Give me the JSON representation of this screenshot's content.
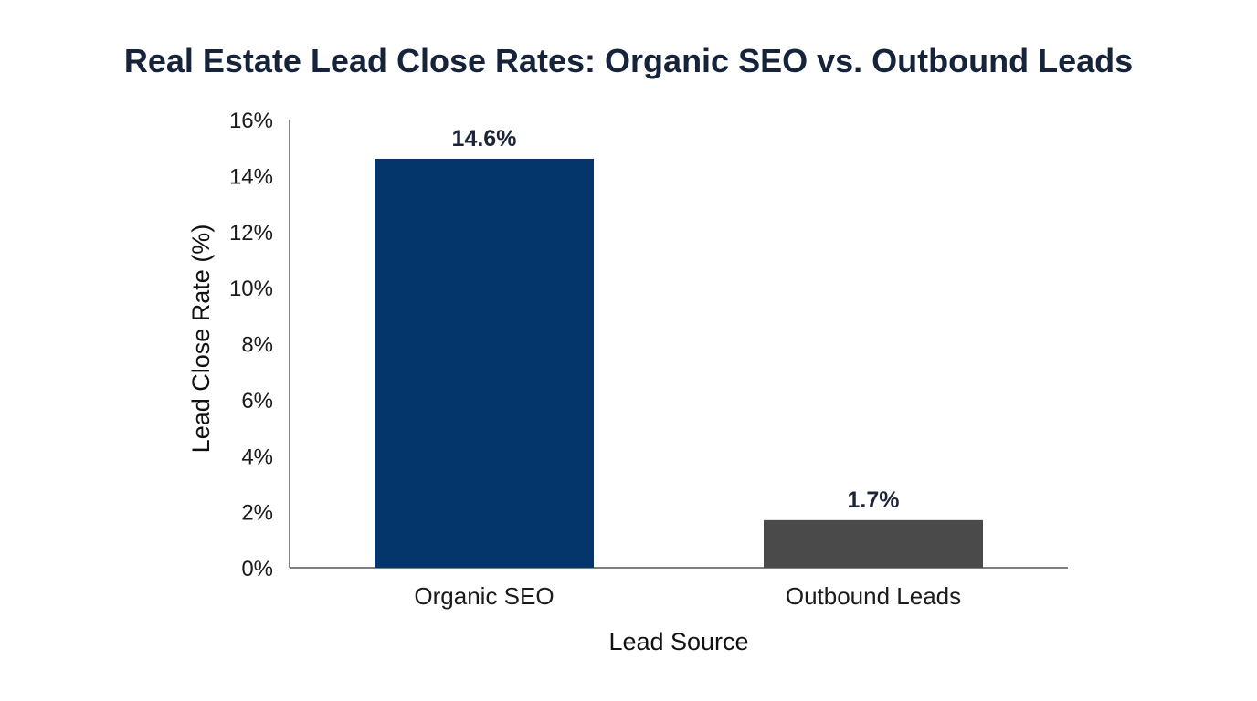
{
  "chart_data": {
    "type": "bar",
    "title": "Real Estate Lead Close Rates: Organic SEO vs. Outbound Leads",
    "xlabel": "Lead Source",
    "ylabel": "Lead Close Rate (%)",
    "categories": [
      "Organic SEO",
      "Outbound Leads"
    ],
    "values": [
      14.6,
      1.7
    ],
    "data_labels": [
      "14.6%",
      "1.7%"
    ],
    "colors": [
      "#04366b",
      "#4a4a4a"
    ],
    "ylim": [
      0,
      16
    ],
    "yticks": [
      0,
      2,
      4,
      6,
      8,
      10,
      12,
      14,
      16
    ],
    "ytick_labels": [
      "0%",
      "2%",
      "4%",
      "6%",
      "8%",
      "10%",
      "12%",
      "14%",
      "16%"
    ],
    "grid": false,
    "legend": "none"
  }
}
